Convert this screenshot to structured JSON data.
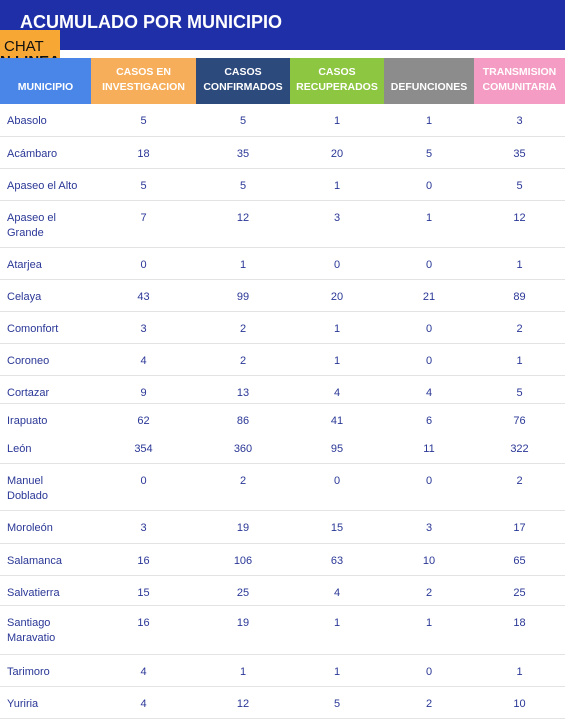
{
  "header": {
    "title": "ACUMULADO POR MUNICIPIO",
    "chat_top": "CHAT",
    "chat_bottom": "N LINEA"
  },
  "table": {
    "columns": [
      "MUNICIPIO",
      "CASOS EN INVESTIGACION",
      "CASOS CONFIRMADOS",
      "CASOS RECUPERADOS",
      "DEFUNCIONES",
      "TRANSMISION COMUNITARIA"
    ],
    "rows": [
      [
        "Abasolo",
        5,
        5,
        1,
        1,
        3
      ],
      [
        "Acámbaro",
        18,
        35,
        20,
        5,
        35
      ],
      [
        "Apaseo el Alto",
        5,
        5,
        1,
        0,
        5
      ],
      [
        "Apaseo el Grande",
        7,
        12,
        3,
        1,
        12
      ],
      [
        "Atarjea",
        0,
        1,
        0,
        0,
        1
      ],
      [
        "Celaya",
        43,
        99,
        20,
        21,
        89
      ],
      [
        "Comonfort",
        3,
        2,
        1,
        0,
        2
      ],
      [
        "Coroneo",
        4,
        2,
        1,
        0,
        1
      ],
      [
        "Cortazar",
        9,
        13,
        4,
        4,
        5
      ],
      [
        "Irapuato",
        62,
        86,
        41,
        6,
        76
      ],
      [
        "León",
        354,
        360,
        95,
        11,
        322
      ],
      [
        "Manuel Doblado",
        0,
        2,
        0,
        0,
        2
      ],
      [
        "Moroleón",
        3,
        19,
        15,
        3,
        17
      ],
      [
        "Salamanca",
        16,
        106,
        63,
        10,
        65
      ],
      [
        "Salvatierra",
        15,
        25,
        4,
        2,
        25
      ],
      [
        "Santiago Maravatio",
        16,
        19,
        1,
        1,
        18
      ],
      [
        "Tarimoro",
        4,
        1,
        1,
        0,
        1
      ],
      [
        "Yuriria",
        4,
        12,
        5,
        2,
        10
      ]
    ]
  }
}
